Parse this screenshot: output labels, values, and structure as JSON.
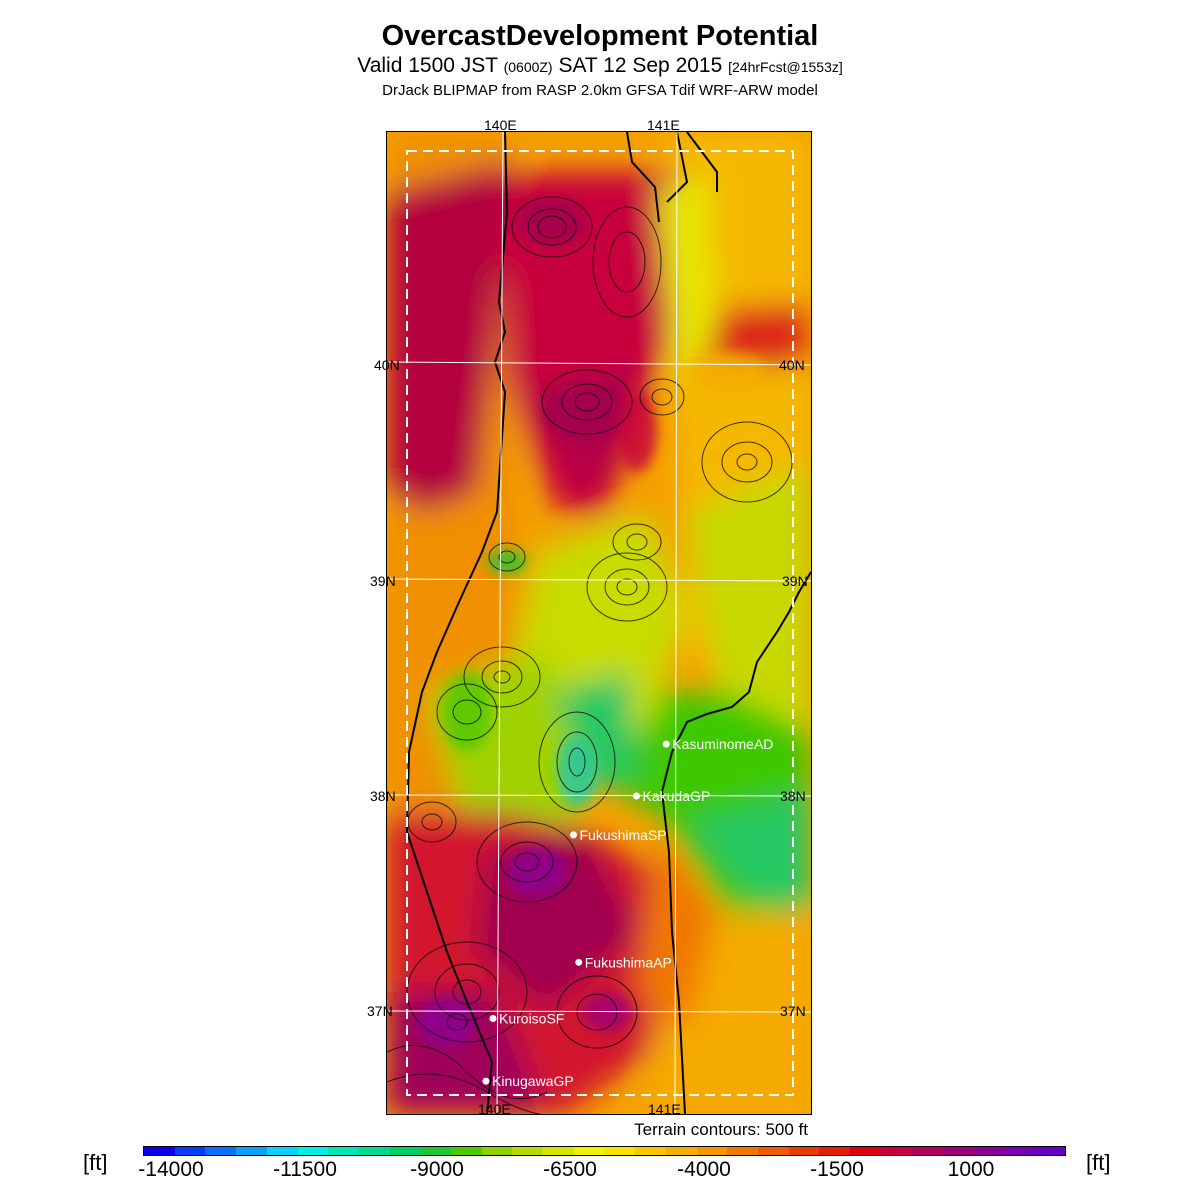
{
  "title": "OvercastDevelopment Potential",
  "subtitle": {
    "main1": "Valid 1500 JST ",
    "zone": "(0600Z)",
    "main2": " SAT 12 Sep 2015 ",
    "forecast": "[24hrFcst@1553z]"
  },
  "model_line": "DrJack BLIPMAP from RASP 2.0km GFSA Tdif WRF-ARW model",
  "grid_labels": {
    "lon_140_top": "140E",
    "lon_141_top": "141E",
    "lon_140_bottom": "140E",
    "lon_141_bottom": "141E",
    "lat_40_left": "40N",
    "lat_40_right": "40N",
    "lat_39_left": "39N",
    "lat_39_right": "39N",
    "lat_38_left": "38N",
    "lat_38_right": "38N",
    "lat_37_left": "37N",
    "lat_37_right": "37N"
  },
  "sites": [
    {
      "name": "KasuminomeAD",
      "lat": 38.24,
      "lon": 140.95
    },
    {
      "name": "KakudaGP",
      "lat": 38.0,
      "lon": 140.78
    },
    {
      "name": "FukushimaSP",
      "lat": 37.82,
      "lon": 140.42
    },
    {
      "name": "FukushimaAP",
      "lat": 37.23,
      "lon": 140.45
    },
    {
      "name": "KuroisoSF",
      "lat": 36.97,
      "lon": 139.96
    },
    {
      "name": "KinugawaGP",
      "lat": 36.68,
      "lon": 139.92
    }
  ],
  "terrain_note": "Terrain contours: 500 ft",
  "unit_left": "[ft]",
  "unit_right": "[ft]",
  "colorbar": {
    "colors": [
      "#0a00f0",
      "#0a3cff",
      "#0a6eff",
      "#0aa0ff",
      "#0ad2ff",
      "#00f0e6",
      "#00e6b4",
      "#00dc8c",
      "#00d264",
      "#1ec832",
      "#50c800",
      "#8cd200",
      "#b4dc00",
      "#d2e600",
      "#f0f000",
      "#fae100",
      "#fac800",
      "#f5af00",
      "#f59600",
      "#f07800",
      "#f05a00",
      "#eb3c00",
      "#e61e00",
      "#dc0014",
      "#c8003c",
      "#b4005a",
      "#a00078",
      "#8c0096",
      "#7800b4",
      "#6400c8"
    ],
    "ticks": [
      "-14000",
      "-11500",
      "-9000",
      "-6500",
      "-4000",
      "-1500",
      "1000"
    ]
  }
}
